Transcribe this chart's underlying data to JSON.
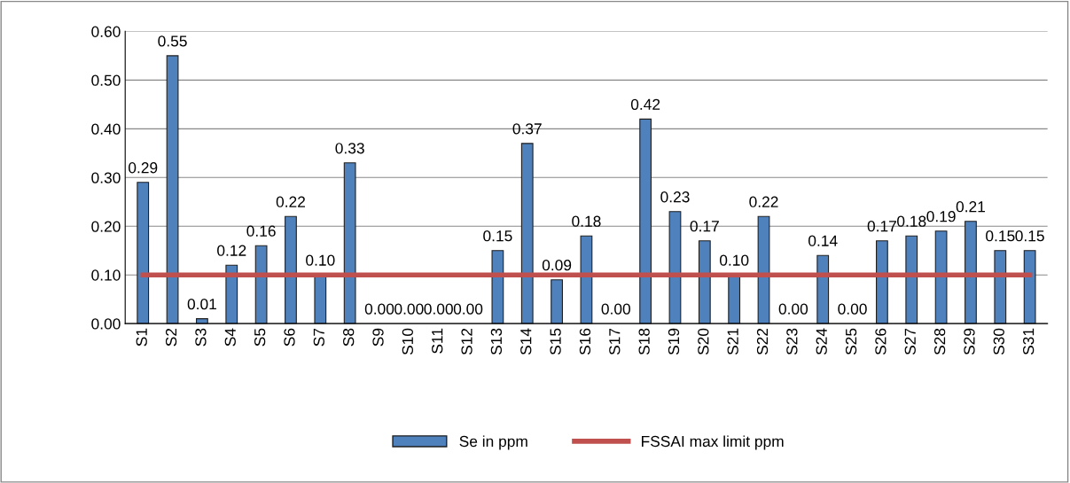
{
  "chart_data": {
    "type": "bar",
    "categories": [
      "S1",
      "S2",
      "S3",
      "S4",
      "S5",
      "S6",
      "S7",
      "S8",
      "S9",
      "S10",
      "S11",
      "S12",
      "S13",
      "S14",
      "S15",
      "S16",
      "S17",
      "S18",
      "S19",
      "S20",
      "S21",
      "S22",
      "S23",
      "S24",
      "S25",
      "S26",
      "S27",
      "S28",
      "S29",
      "S30",
      "S31"
    ],
    "series": [
      {
        "name": "Se in ppm",
        "color": "#4f81bd",
        "values": [
          0.29,
          0.55,
          0.01,
          0.12,
          0.16,
          0.22,
          0.1,
          0.33,
          0.0,
          0.0,
          0.0,
          0.0,
          0.15,
          0.37,
          0.09,
          0.18,
          0.0,
          0.42,
          0.23,
          0.17,
          0.1,
          0.22,
          0.0,
          0.14,
          0.0,
          0.17,
          0.18,
          0.19,
          0.21,
          0.15,
          0.15
        ],
        "value_labels": [
          "0.29",
          "0.55",
          "0.01",
          "0.12",
          "0.16",
          "0.22",
          "0.10",
          "0.33",
          "0.00",
          "0.00",
          "0.00",
          "0.00",
          "0.15",
          "0.37",
          "0.09",
          "0.18",
          "0.00",
          "0.42",
          "0.23",
          "0.17",
          "0.10",
          "0.22",
          "0.00",
          "0.14",
          "0.00",
          "0.17",
          "0.18",
          "0.19",
          "0.21",
          "0.15",
          "0.15"
        ]
      },
      {
        "name": "FSSAI max limit ppm",
        "type": "line",
        "color": "#c0504d",
        "values": [
          0.1,
          0.1,
          0.1,
          0.1,
          0.1,
          0.1,
          0.1,
          0.1,
          0.1,
          0.1,
          0.1,
          0.1,
          0.1,
          0.1,
          0.1,
          0.1,
          0.1,
          0.1,
          0.1,
          0.1,
          0.1,
          0.1,
          0.1,
          0.1,
          0.1,
          0.1,
          0.1,
          0.1,
          0.1,
          0.1,
          0.1
        ]
      }
    ],
    "ylim": [
      0,
      0.6
    ],
    "yticks": [
      {
        "value": 0,
        "label": "0.00"
      },
      {
        "value": 0.1,
        "label": "0.10"
      },
      {
        "value": 0.2,
        "label": "0.20"
      },
      {
        "value": 0.3,
        "label": "0.30"
      },
      {
        "value": 0.4,
        "label": "0.40"
      },
      {
        "value": 0.5,
        "label": "0.50"
      },
      {
        "value": 0.6,
        "label": "0.60"
      }
    ],
    "grid": "y",
    "legend": "bottom",
    "marker": "none"
  }
}
